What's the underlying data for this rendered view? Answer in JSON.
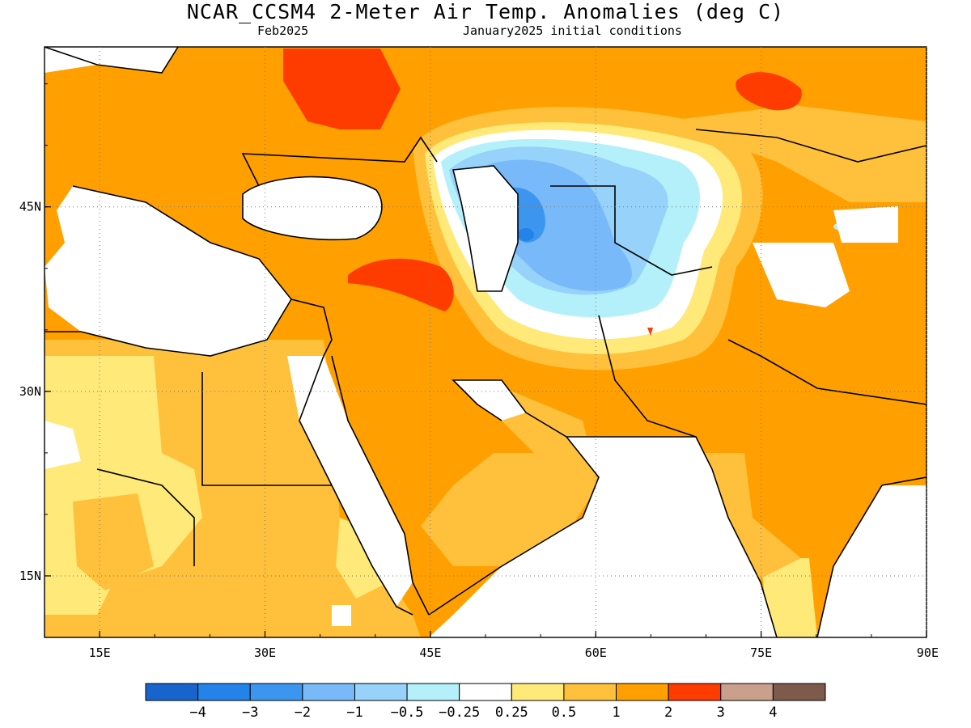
{
  "title": "NCAR_CCSM4 2-Meter Air Temp. Anomalies (deg C)",
  "subtitle_left": "Feb2025",
  "subtitle_right": "January2025 initial conditions",
  "map": {
    "lon_range": [
      10,
      90
    ],
    "lat_range": [
      10,
      58
    ],
    "lon_ticks": [
      {
        "value": 15,
        "label": "15E"
      },
      {
        "value": 30,
        "label": "30E"
      },
      {
        "value": 45,
        "label": "45E"
      },
      {
        "value": 60,
        "label": "60E"
      },
      {
        "value": 75,
        "label": "75E"
      },
      {
        "value": 90,
        "label": "90E"
      }
    ],
    "lat_ticks": [
      {
        "value": 45,
        "label": "45N"
      },
      {
        "value": 30,
        "label": "30N"
      },
      {
        "value": 15,
        "label": "15N"
      }
    ]
  },
  "colorbar": {
    "colors": [
      "#1864cd",
      "#2383e8",
      "#3c96f0",
      "#78b9fa",
      "#96d2fa",
      "#b4f0fa",
      "#ffffff",
      "#ffe978",
      "#ffc03c",
      "#ffa000",
      "#ff3c00",
      "#c8a08c",
      "#7d5a4b"
    ],
    "labels": [
      "−4",
      "−3",
      "−2",
      "−1",
      "−0.5",
      "−0.25",
      "0.25",
      "0.5",
      "1",
      "2",
      "3",
      "4"
    ]
  },
  "palette": {
    "orange": "#ffa000",
    "light_orange": "#ffc03c",
    "yellow": "#ffe978",
    "red": "#ff3c00",
    "pale_cyan": "#b4f0fa",
    "light_blue": "#96d2fa",
    "mid_blue": "#78b9fa",
    "blue": "#3c96f0",
    "dark_blue": "#2383e8"
  }
}
